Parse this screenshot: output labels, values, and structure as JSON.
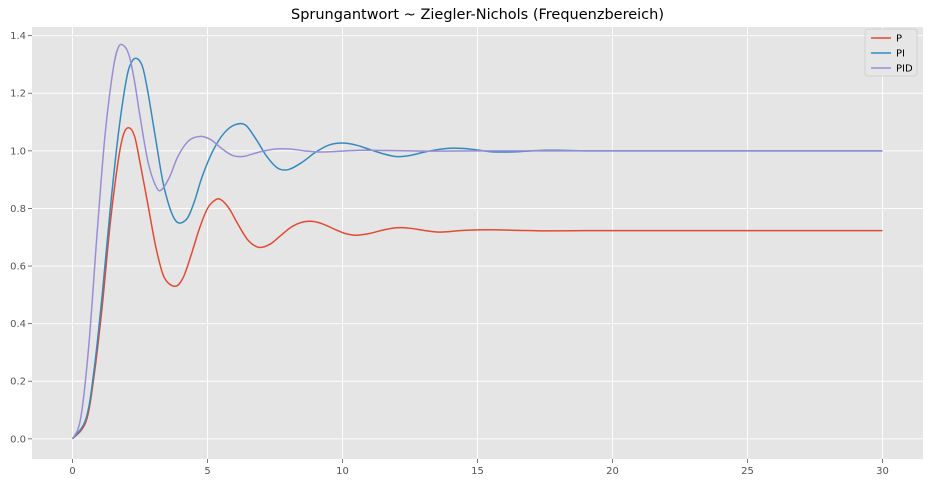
{
  "chart_data": {
    "type": "line",
    "title": "Sprungantwort ~ Ziegler-Nichols (Frequenzbereich)",
    "xlabel": "",
    "ylabel": "",
    "xlim": [
      -1.5,
      31.5
    ],
    "ylim": [
      -0.07,
      1.43
    ],
    "xticks": [
      0,
      5,
      10,
      15,
      20,
      25,
      30
    ],
    "xtick_labels": [
      "0",
      "5",
      "10",
      "15",
      "20",
      "25",
      "30"
    ],
    "yticks": [
      0.0,
      0.2,
      0.4,
      0.6,
      0.8,
      1.0,
      1.2,
      1.4
    ],
    "ytick_labels": [
      "0.0",
      "0.2",
      "0.4",
      "0.6",
      "0.8",
      "1.0",
      "1.2",
      "1.4"
    ],
    "grid": true,
    "legend_position": "top-right",
    "series": [
      {
        "name": "P",
        "color": "#E24A33",
        "x": [
          0,
          0.5,
          0.8,
          1.1,
          1.4,
          1.7,
          1.9,
          2.1,
          2.3,
          2.5,
          2.8,
          3.1,
          3.4,
          3.8,
          4.1,
          4.4,
          4.7,
          5.0,
          5.3,
          5.5,
          5.8,
          6.1,
          6.5,
          6.9,
          7.3,
          7.7,
          8.1,
          8.5,
          8.9,
          9.3,
          9.7,
          10.1,
          10.5,
          11.0,
          11.5,
          12.0,
          12.5,
          13.0,
          13.5,
          14.0,
          14.5,
          15.5,
          16.5,
          17.5,
          19.0,
          20.5,
          22.0,
          25.0,
          30.0
        ],
        "y": [
          0,
          0.06,
          0.22,
          0.46,
          0.75,
          0.97,
          1.06,
          1.08,
          1.05,
          0.96,
          0.81,
          0.66,
          0.56,
          0.53,
          0.56,
          0.64,
          0.73,
          0.8,
          0.83,
          0.83,
          0.8,
          0.75,
          0.69,
          0.665,
          0.675,
          0.705,
          0.735,
          0.752,
          0.755,
          0.745,
          0.728,
          0.713,
          0.707,
          0.713,
          0.725,
          0.733,
          0.731,
          0.724,
          0.718,
          0.72,
          0.724,
          0.726,
          0.724,
          0.722,
          0.723,
          0.723,
          0.723,
          0.723,
          0.723
        ]
      },
      {
        "name": "PI",
        "color": "#348ABD",
        "x": [
          0,
          0.5,
          0.8,
          1.1,
          1.4,
          1.7,
          2.0,
          2.2,
          2.4,
          2.6,
          2.8,
          3.1,
          3.4,
          3.8,
          4.2,
          4.5,
          4.8,
          5.2,
          5.6,
          6.0,
          6.4,
          6.8,
          7.2,
          7.6,
          8.0,
          8.5,
          9.0,
          9.5,
          10.0,
          10.5,
          11.0,
          11.5,
          12.0,
          12.5,
          13.0,
          13.5,
          14.0,
          14.5,
          15.0,
          15.5,
          16.0,
          16.5,
          17.0,
          17.5,
          18.0,
          19.0,
          20.0,
          22.0,
          25.0,
          30.0
        ],
        "y": [
          0,
          0.07,
          0.24,
          0.5,
          0.8,
          1.06,
          1.25,
          1.31,
          1.32,
          1.29,
          1.2,
          1.03,
          0.87,
          0.76,
          0.76,
          0.82,
          0.91,
          1.0,
          1.06,
          1.09,
          1.09,
          1.04,
          0.98,
          0.94,
          0.935,
          0.96,
          0.995,
          1.02,
          1.027,
          1.02,
          1.005,
          0.99,
          0.98,
          0.984,
          0.995,
          1.004,
          1.009,
          1.008,
          1.003,
          0.997,
          0.996,
          0.997,
          1.0,
          1.002,
          1.002,
          1.0,
          1.0,
          1.0,
          1.0,
          1.0
        ]
      },
      {
        "name": "PID",
        "color": "#988ED5",
        "x": [
          0,
          0.3,
          0.6,
          0.9,
          1.2,
          1.5,
          1.7,
          1.9,
          2.1,
          2.3,
          2.5,
          2.8,
          3.1,
          3.3,
          3.6,
          3.9,
          4.3,
          4.7,
          5.1,
          5.5,
          5.9,
          6.3,
          6.7,
          7.1,
          7.6,
          8.1,
          8.6,
          9.1,
          9.6,
          10.1,
          10.6,
          11.1,
          11.6,
          12.5,
          13.5,
          15.0,
          17.0,
          20.0,
          25.0,
          30.0
        ],
        "y": [
          0,
          0.07,
          0.32,
          0.7,
          1.05,
          1.28,
          1.36,
          1.365,
          1.33,
          1.24,
          1.12,
          0.96,
          0.875,
          0.865,
          0.91,
          0.98,
          1.035,
          1.05,
          1.04,
          1.01,
          0.985,
          0.98,
          0.99,
          1.0,
          1.007,
          1.006,
          1.0,
          0.996,
          0.997,
          1.0,
          1.002,
          1.002,
          1.001,
          1.0,
          0.999,
          1.0,
          1.0,
          1.0,
          1.0,
          1.0
        ]
      }
    ]
  }
}
